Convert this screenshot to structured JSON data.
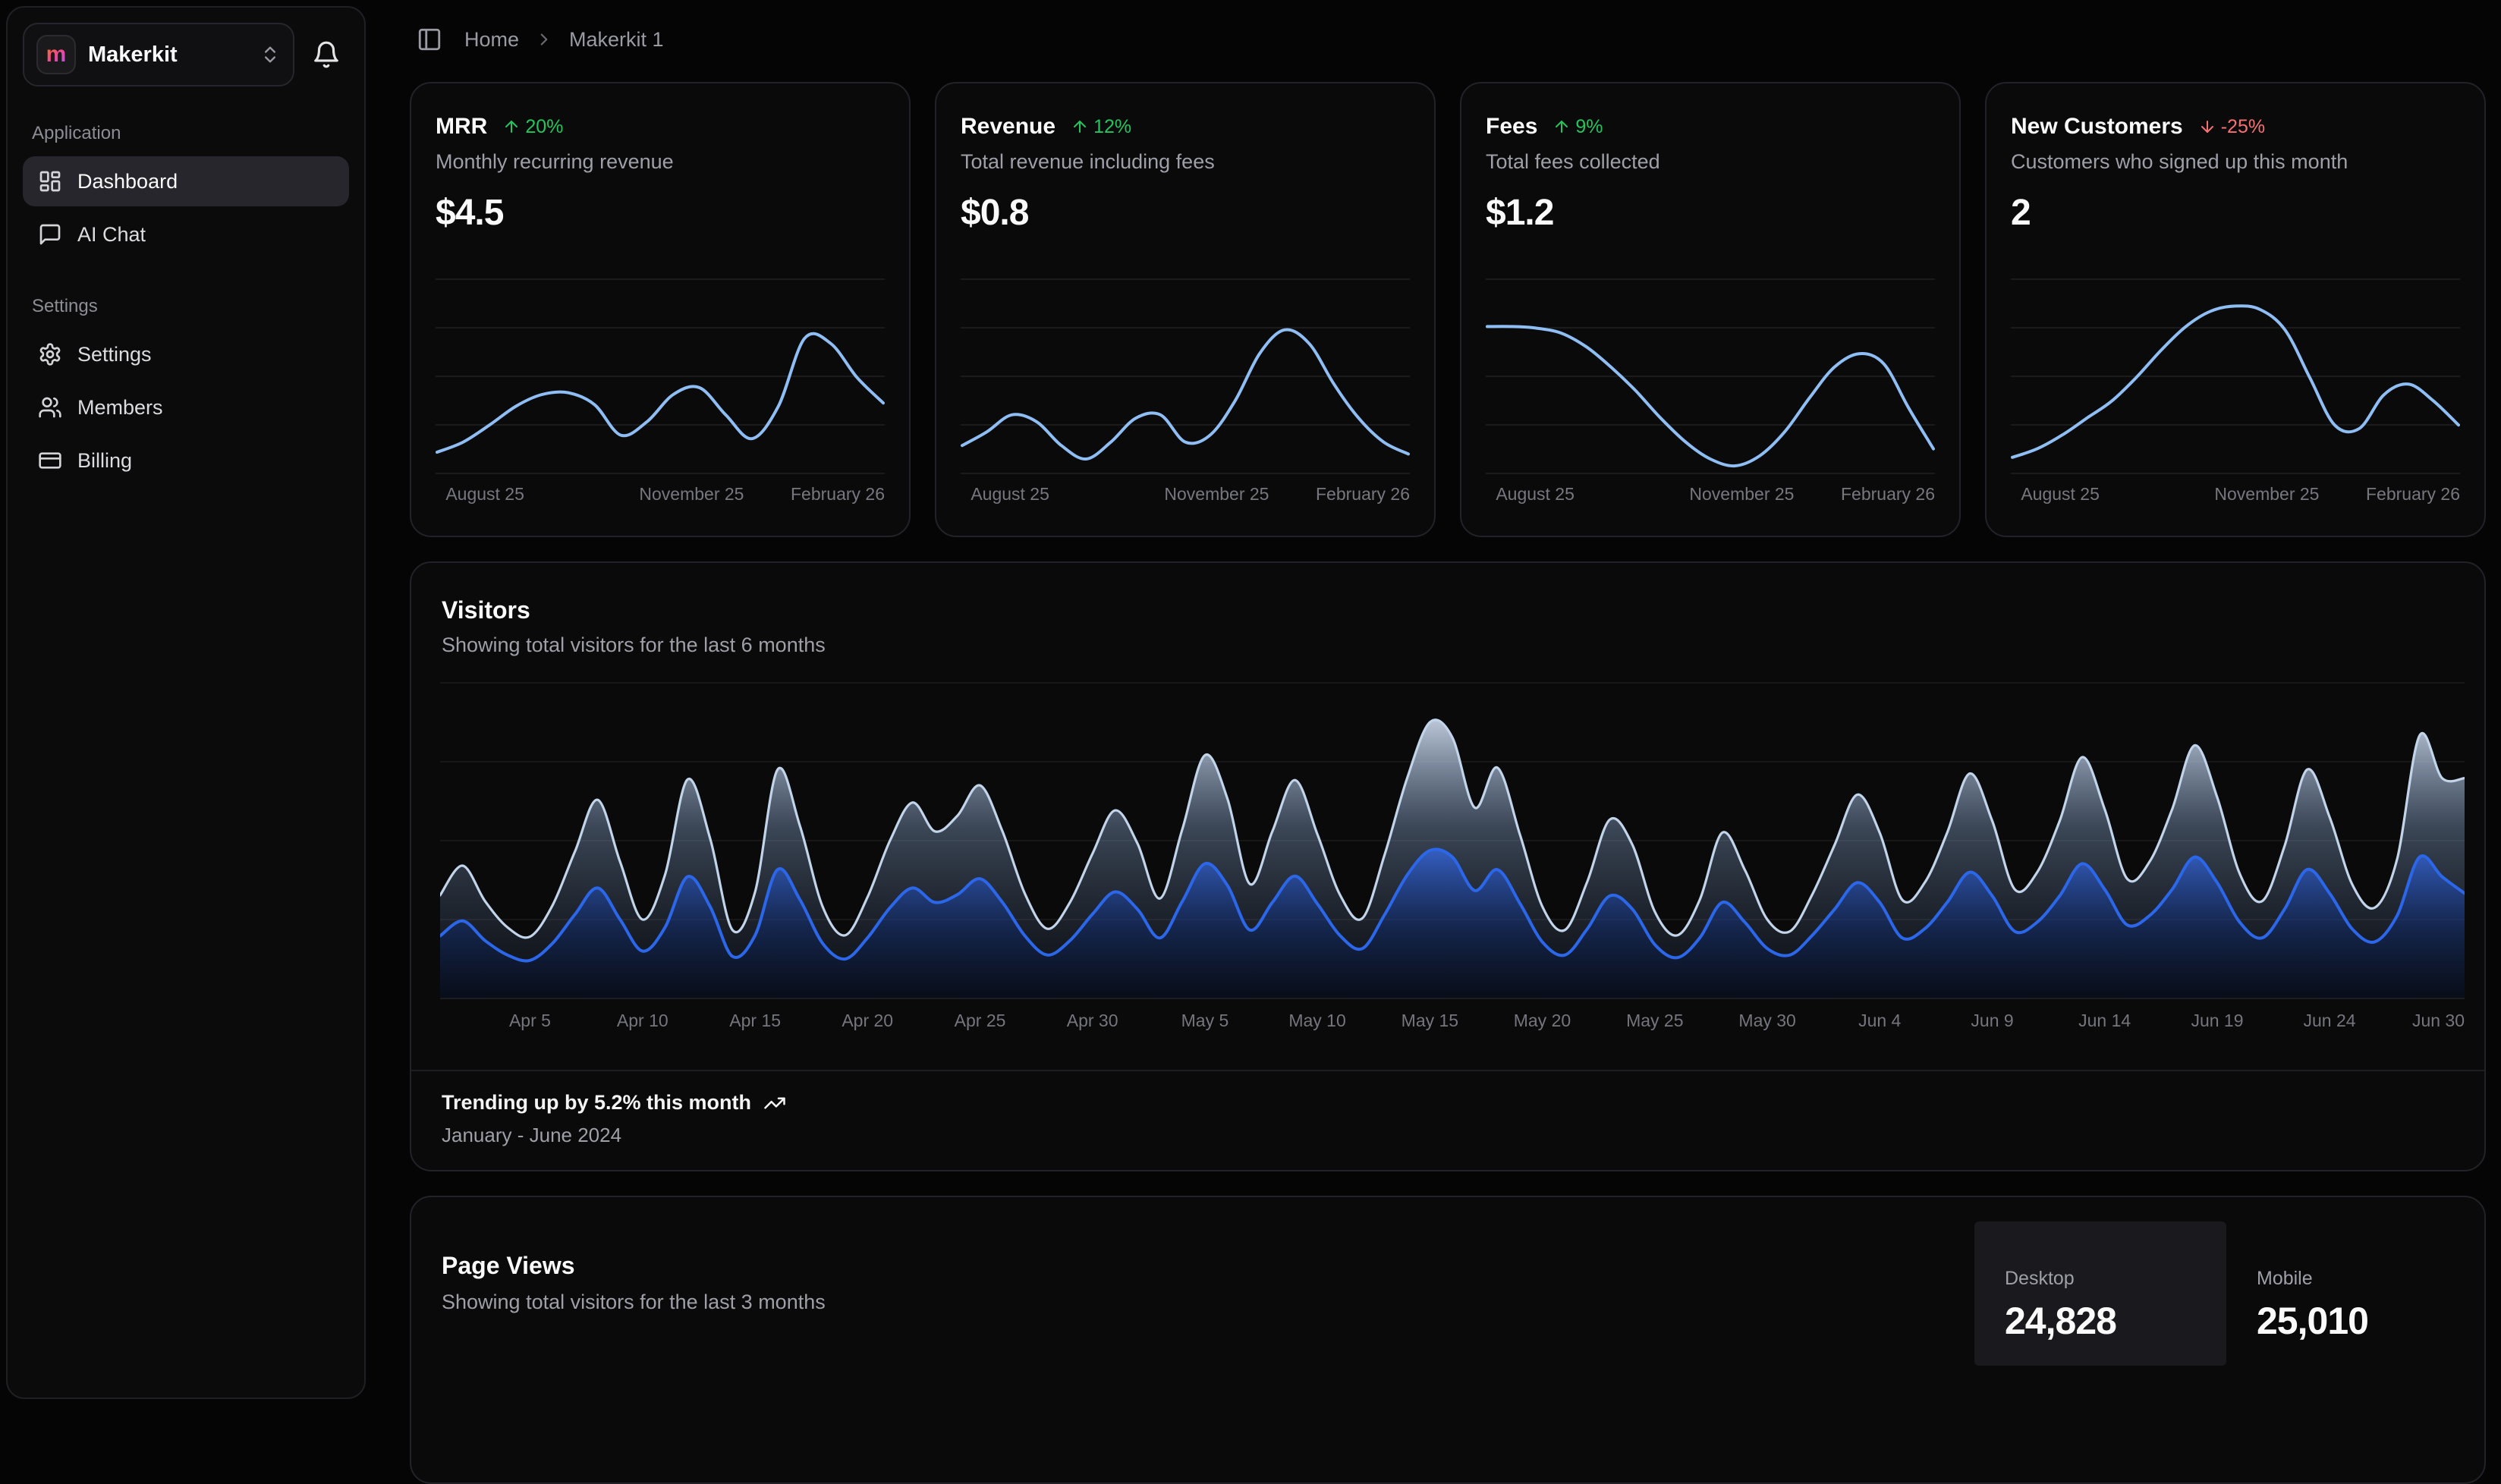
{
  "sidebar": {
    "org_name": "Makerkit",
    "logo_letter": "m",
    "sections": [
      {
        "label": "Application",
        "items": [
          {
            "label": "Dashboard",
            "icon": "layout-dashboard-icon",
            "active": true
          },
          {
            "label": "AI Chat",
            "icon": "message-square-icon",
            "active": false
          }
        ]
      },
      {
        "label": "Settings",
        "items": [
          {
            "label": "Settings",
            "icon": "gear-icon",
            "active": false
          },
          {
            "label": "Members",
            "icon": "users-icon",
            "active": false
          },
          {
            "label": "Billing",
            "icon": "credit-card-icon",
            "active": false
          }
        ]
      }
    ]
  },
  "breadcrumb": {
    "home": "Home",
    "current": "Makerkit 1"
  },
  "stat_cards": [
    {
      "title": "MRR",
      "trend_dir": "up",
      "trend_label": "20%",
      "subtitle": "Monthly recurring revenue",
      "value": "$4.5",
      "chart_id": "mrr-spark"
    },
    {
      "title": "Revenue",
      "trend_dir": "up",
      "trend_label": "12%",
      "subtitle": "Total revenue including fees",
      "value": "$0.8",
      "chart_id": "revenue-spark"
    },
    {
      "title": "Fees",
      "trend_dir": "up",
      "trend_label": "9%",
      "subtitle": "Total fees collected",
      "value": "$1.2",
      "chart_id": "fees-spark"
    },
    {
      "title": "New Customers",
      "trend_dir": "down",
      "trend_label": "-25%",
      "subtitle": "Customers who signed up this month",
      "value": "2",
      "chart_id": "customers-spark"
    }
  ],
  "visitors": {
    "title": "Visitors",
    "subtitle": "Showing total visitors for the last 6 months",
    "footer_line1": "Trending up by 5.2% this month",
    "footer_line2": "January - June 2024",
    "chart_id": "visitors-area"
  },
  "page_views": {
    "title": "Page Views",
    "subtitle": "Showing total visitors for the last 3 months",
    "stats": [
      {
        "label": "Desktop",
        "value": "24,828",
        "selected": true
      },
      {
        "label": "Mobile",
        "value": "25,010",
        "selected": false
      }
    ]
  },
  "colors": {
    "accent_green": "#22c55e",
    "accent_red": "#f87171",
    "spark_line": "#8fbef5",
    "visitors_desktop_line": "#2c67ea",
    "visitors_mobile_line": "#c2d4ea",
    "brand_gradient": [
      "#f97316",
      "#ec4899",
      "#a855f7"
    ]
  },
  "chart_data": [
    {
      "id": "mrr-spark",
      "type": "line",
      "title": "MRR sparkline",
      "x_ticks": [
        "August 25",
        "November 25",
        "February 26"
      ],
      "ylim": [
        0,
        100
      ],
      "values": [
        8,
        14,
        24,
        35,
        42,
        43,
        36,
        18,
        26,
        42,
        46,
        30,
        16,
        35,
        75,
        72,
        52,
        37
      ]
    },
    {
      "id": "revenue-spark",
      "type": "line",
      "title": "Revenue sparkline",
      "x_ticks": [
        "August 25",
        "November 25",
        "February 26"
      ],
      "ylim": [
        0,
        100
      ],
      "values": [
        12,
        20,
        30,
        26,
        12,
        4,
        14,
        28,
        30,
        14,
        18,
        38,
        66,
        80,
        72,
        48,
        28,
        14,
        7
      ]
    },
    {
      "id": "fees-spark",
      "type": "line",
      "title": "Fees sparkline",
      "x_ticks": [
        "August 25",
        "November 25",
        "February 26"
      ],
      "ylim": [
        0,
        100
      ],
      "values": [
        82,
        82,
        81,
        78,
        70,
        58,
        44,
        28,
        14,
        4,
        0,
        6,
        20,
        40,
        58,
        66,
        60,
        34,
        10
      ]
    },
    {
      "id": "customers-spark",
      "type": "line",
      "title": "New Customers sparkline",
      "x_ticks": [
        "August 25",
        "November 25",
        "February 26"
      ],
      "ylim": [
        0,
        100
      ],
      "values": [
        5,
        10,
        18,
        28,
        38,
        52,
        68,
        82,
        91,
        94,
        92,
        80,
        52,
        24,
        22,
        42,
        48,
        38,
        24
      ]
    },
    {
      "id": "visitors-area",
      "type": "area",
      "stacked": true,
      "title": "Visitors",
      "subtitle": "Showing total visitors for the last 6 months",
      "ylim": [
        0,
        480
      ],
      "grid": "horizontal",
      "legend": "none",
      "x_ticks": [
        {
          "label": "Apr 5",
          "day": 4
        },
        {
          "label": "Apr 10",
          "day": 9
        },
        {
          "label": "Apr 15",
          "day": 14
        },
        {
          "label": "Apr 20",
          "day": 19
        },
        {
          "label": "Apr 25",
          "day": 24
        },
        {
          "label": "Apr 30",
          "day": 29
        },
        {
          "label": "May 5",
          "day": 34
        },
        {
          "label": "May 10",
          "day": 39
        },
        {
          "label": "May 15",
          "day": 44
        },
        {
          "label": "May 20",
          "day": 49
        },
        {
          "label": "May 25",
          "day": 54
        },
        {
          "label": "May 30",
          "day": 59
        },
        {
          "label": "Jun 4",
          "day": 64
        },
        {
          "label": "Jun 9",
          "day": 69
        },
        {
          "label": "Jun 14",
          "day": 74
        },
        {
          "label": "Jun 19",
          "day": 79
        },
        {
          "label": "Jun 24",
          "day": 84
        },
        {
          "label": "Jun 30",
          "day": 90
        }
      ],
      "series": [
        {
          "name": "desktop",
          "values": [
            95,
            118,
            88,
            66,
            58,
            84,
            128,
            168,
            120,
            72,
            108,
            185,
            140,
            64,
            96,
            196,
            150,
            84,
            60,
            92,
            138,
            168,
            146,
            158,
            182,
            146,
            95,
            66,
            88,
            128,
            162,
            136,
            92,
            148,
            205,
            172,
            104,
            146,
            186,
            144,
            96,
            76,
            128,
            188,
            225,
            215,
            164,
            196,
            145,
            86,
            66,
            106,
            156,
            136,
            82,
            62,
            92,
            146,
            116,
            76,
            66,
            96,
            136,
            176,
            146,
            92,
            106,
            146,
            192,
            156,
            102,
            116,
            156,
            205,
            166,
            112,
            126,
            166,
            215,
            176,
            116,
            92,
            136,
            196,
            160,
            106,
            86,
            126,
            215,
            185,
            160
          ]
        },
        {
          "name": "mobile",
          "values": [
            62,
            84,
            60,
            42,
            36,
            58,
            96,
            134,
            88,
            48,
            80,
            148,
            104,
            40,
            66,
            152,
            112,
            56,
            36,
            62,
            102,
            130,
            108,
            120,
            142,
            108,
            64,
            40,
            58,
            92,
            124,
            100,
            60,
            110,
            165,
            132,
            70,
            108,
            146,
            106,
            62,
            46,
            92,
            148,
            195,
            182,
            126,
            155,
            105,
            54,
            38,
            72,
            116,
            98,
            50,
            34,
            58,
            106,
            80,
            44,
            36,
            62,
            98,
            134,
            106,
            58,
            70,
            106,
            150,
            114,
            64,
            76,
            114,
            162,
            122,
            70,
            82,
            122,
            170,
            130,
            74,
            56,
            96,
            152,
            116,
            68,
            52,
            86,
            185,
            150,
            175
          ]
        }
      ]
    }
  ]
}
